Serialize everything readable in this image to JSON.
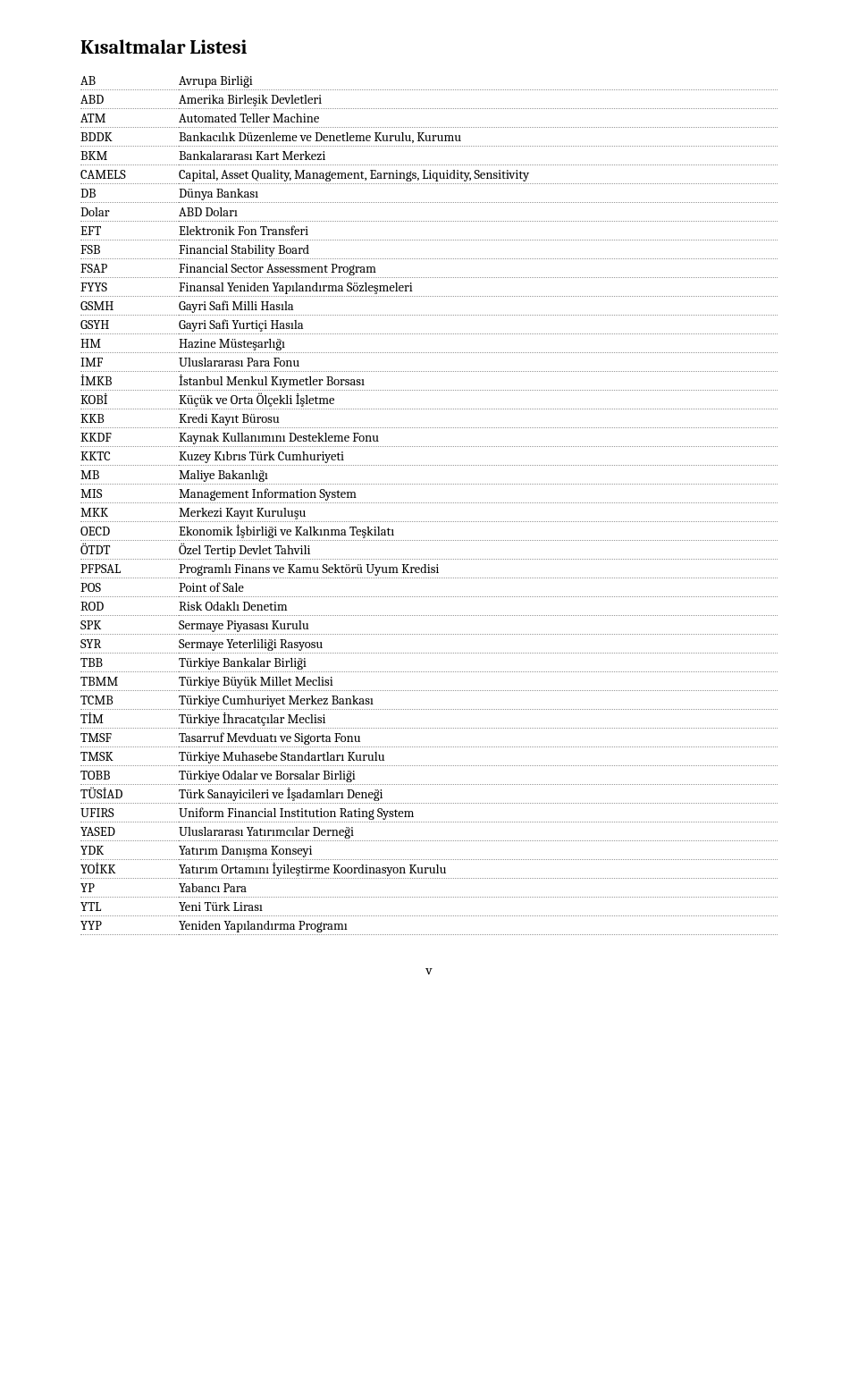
{
  "title": "Kısaltmalar Listesi",
  "pageNumber": "v",
  "rows": [
    {
      "abbr": "AB",
      "def": "Avrupa Birliği"
    },
    {
      "abbr": "ABD",
      "def": "Amerika Birleşik Devletleri"
    },
    {
      "abbr": "ATM",
      "def": "Automated Teller Machine"
    },
    {
      "abbr": "BDDK",
      "def": "Bankacılık Düzenleme ve Denetleme Kurulu, Kurumu"
    },
    {
      "abbr": "BKM",
      "def": "Bankalararası Kart Merkezi"
    },
    {
      "abbr": "CAMELS",
      "def": "Capital, Asset Quality, Management, Earnings, Liquidity, Sensitivity"
    },
    {
      "abbr": "DB",
      "def": "Dünya Bankası"
    },
    {
      "abbr": "Dolar",
      "def": "ABD Doları"
    },
    {
      "abbr": "EFT",
      "def": "Elektronik Fon Transferi"
    },
    {
      "abbr": "FSB",
      "def": "Financial Stability Board"
    },
    {
      "abbr": "FSAP",
      "def": "Financial Sector Assessment Program"
    },
    {
      "abbr": "FYYS",
      "def": "Finansal Yeniden Yapılandırma Sözleşmeleri"
    },
    {
      "abbr": "GSMH",
      "def": "Gayri Safi Milli Hasıla"
    },
    {
      "abbr": "GSYH",
      "def": "Gayri Safi Yurtiçi Hasıla"
    },
    {
      "abbr": "HM",
      "def": "Hazine Müsteşarlığı"
    },
    {
      "abbr": "IMF",
      "def": "Uluslararası Para Fonu"
    },
    {
      "abbr": "İMKB",
      "def": "İstanbul Menkul Kıymetler Borsası"
    },
    {
      "abbr": "KOBİ",
      "def": "Küçük ve Orta Ölçekli İşletme"
    },
    {
      "abbr": "KKB",
      "def": "Kredi Kayıt Bürosu"
    },
    {
      "abbr": "KKDF",
      "def": "Kaynak Kullanımını Destekleme Fonu"
    },
    {
      "abbr": "KKTC",
      "def": "Kuzey Kıbrıs Türk Cumhuriyeti"
    },
    {
      "abbr": "MB",
      "def": "Maliye Bakanlığı"
    },
    {
      "abbr": "MIS",
      "def": "Management Information System"
    },
    {
      "abbr": "MKK",
      "def": "Merkezi Kayıt Kuruluşu"
    },
    {
      "abbr": "OECD",
      "def": "Ekonomik İşbirliği ve Kalkınma Teşkilatı"
    },
    {
      "abbr": "ÖTDT",
      "def": "Özel Tertip Devlet Tahvili"
    },
    {
      "abbr": "PFPSAL",
      "def": "Programlı Finans ve Kamu Sektörü Uyum Kredisi"
    },
    {
      "abbr": "POS",
      "def": "Point of Sale"
    },
    {
      "abbr": "ROD",
      "def": "Risk Odaklı Denetim"
    },
    {
      "abbr": "SPK",
      "def": "Sermaye Piyasası Kurulu"
    },
    {
      "abbr": "SYR",
      "def": "Sermaye Yeterliliği Rasyosu"
    },
    {
      "abbr": "TBB",
      "def": "Türkiye Bankalar Birliği"
    },
    {
      "abbr": "TBMM",
      "def": "Türkiye Büyük Millet Meclisi"
    },
    {
      "abbr": "TCMB",
      "def": "Türkiye Cumhuriyet Merkez Bankası"
    },
    {
      "abbr": "TİM",
      "def": "Türkiye İhracatçılar Meclisi"
    },
    {
      "abbr": "TMSF",
      "def": "Tasarruf Mevduatı ve Sigorta Fonu"
    },
    {
      "abbr": "TMSK",
      "def": "Türkiye Muhasebe Standartları Kurulu"
    },
    {
      "abbr": "TOBB",
      "def": "Türkiye Odalar ve Borsalar Birliği"
    },
    {
      "abbr": "TÜSİAD",
      "def": "Türk Sanayicileri ve İşadamları Deneği"
    },
    {
      "abbr": "UFIRS",
      "def": "Uniform Financial Institution Rating System"
    },
    {
      "abbr": "YASED",
      "def": "Uluslararası Yatırımcılar Derneği"
    },
    {
      "abbr": "YDK",
      "def": "Yatırım Danışma Konseyi"
    },
    {
      "abbr": "YOİKK",
      "def": "Yatırım Ortamını İyileştirme Koordinasyon Kurulu"
    },
    {
      "abbr": "YP",
      "def": "Yabancı Para"
    },
    {
      "abbr": "YTL",
      "def": "Yeni Türk Lirası"
    },
    {
      "abbr": "YYP",
      "def": "Yeniden Yapılandırma Programı"
    }
  ]
}
